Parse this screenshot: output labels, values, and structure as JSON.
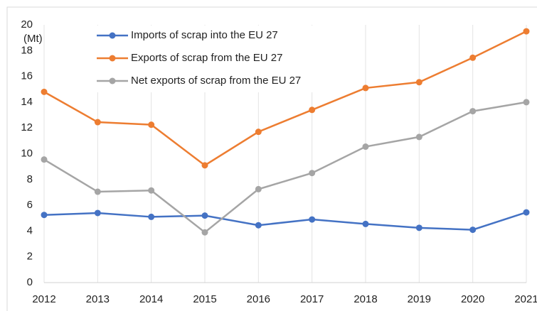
{
  "chart_data": {
    "type": "line",
    "y_unit_label": "(Mt)",
    "categories": [
      "2012",
      "2013",
      "2014",
      "2015",
      "2016",
      "2017",
      "2018",
      "2019",
      "2020",
      "2021"
    ],
    "series": [
      {
        "name": "Imports of scrap into the EU 27",
        "color": "#4472c4",
        "values": [
          5.25,
          5.4,
          5.1,
          5.2,
          4.45,
          4.9,
          4.55,
          4.25,
          4.1,
          5.45
        ]
      },
      {
        "name": "Exports of scrap from the EU 27",
        "color": "#ed7d31",
        "values": [
          14.8,
          12.45,
          12.25,
          9.1,
          11.7,
          13.4,
          15.1,
          15.55,
          17.45,
          19.5
        ]
      },
      {
        "name": "Net exports of scrap from the EU 27",
        "color": "#a5a5a5",
        "values": [
          9.55,
          7.05,
          7.15,
          3.9,
          7.25,
          8.5,
          10.55,
          11.3,
          13.3,
          14.0
        ]
      }
    ],
    "ylim": [
      0,
      20
    ],
    "yticks": [
      0,
      2,
      4,
      6,
      8,
      10,
      12,
      14,
      16,
      18,
      20
    ],
    "grid": true,
    "legend": "upper left"
  }
}
